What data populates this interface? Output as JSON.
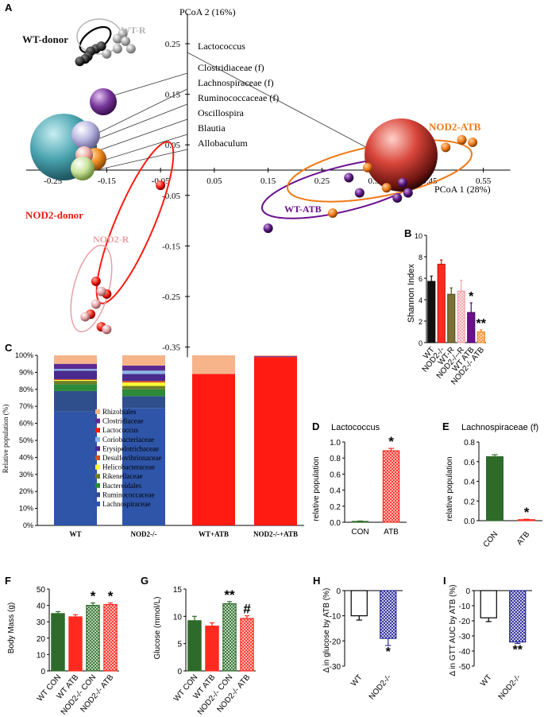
{
  "panel_letters": {
    "A": "A",
    "B": "B",
    "C": "C",
    "D": "D",
    "E": "E",
    "F": "F",
    "G": "G",
    "H": "H",
    "I": "I"
  },
  "colors": {
    "wt": "#2e6b2a",
    "nod2": "#ff2a1f",
    "wtr": "#7a7035",
    "nod2r": "#f3a0a8",
    "wtatb": "#6b0f8e",
    "nod2atb": "#f28b30",
    "stack_lachno": "#2e55a8",
    "stack_rumino": "#2f4f8c",
    "stack_bact": "#2d8a3a",
    "stack_clost": "#5c2a91",
    "stack_lacto": "#ff1a12",
    "stack_rhiz": "#f7b38a",
    "stack_rike": "#6b7f2a",
    "stack_helico": "#ffff33",
    "stack_desulf": "#d2502a",
    "stack_erysip": "#4a2a8c",
    "stack_corio": "#8ab6e6"
  },
  "chart_data": [
    {
      "id": "A",
      "type": "scatter",
      "xlabel": "PCoA 1 (28%)",
      "ylabel": "PCoA 2 (16%)",
      "x_ticks": [
        "-0.25",
        "-0.15",
        "-0.05",
        "0.05",
        "0.15",
        "0.25",
        "0.35",
        "0.45",
        "0.55"
      ],
      "y_ticks": [
        "0.25",
        "0.15",
        "0.05",
        "-0.05",
        "-0.15",
        "-0.25",
        "-0.35"
      ],
      "xlim": [
        -0.3,
        0.6
      ],
      "ylim": [
        -0.35,
        0.3
      ],
      "groups": [
        {
          "name": "WT-donor",
          "color": "#111111",
          "points": [
            [
              -0.17,
              0.24
            ],
            [
              -0.18,
              0.235
            ],
            [
              -0.185,
              0.225
            ],
            [
              -0.19,
              0.22
            ],
            [
              -0.2,
              0.215
            ],
            [
              -0.16,
              0.245
            ]
          ]
        },
        {
          "name": "WT-R",
          "color": "#9a9a9a",
          "points": [
            [
              -0.12,
              0.27
            ],
            [
              -0.13,
              0.26
            ],
            [
              -0.115,
              0.255
            ],
            [
              -0.13,
              0.24
            ],
            [
              -0.105,
              0.24
            ],
            [
              -0.15,
              0.23
            ]
          ]
        },
        {
          "name": "NOD2-donor",
          "color": "#ff1a12",
          "points": [
            [
              -0.05,
              -0.03
            ],
            [
              -0.17,
              -0.22
            ],
            [
              -0.15,
              -0.245
            ],
            [
              -0.18,
              -0.285
            ],
            [
              -0.16,
              -0.31
            ]
          ]
        },
        {
          "name": "NOD2-R",
          "color": "#e7a0a6",
          "points": [
            [
              -0.16,
              -0.24
            ],
            [
              -0.17,
              -0.265
            ],
            [
              -0.19,
              -0.29
            ],
            [
              -0.15,
              -0.315
            ]
          ]
        },
        {
          "name": "WT-ATB",
          "color": "#5b1780",
          "points": [
            [
              0.3,
              -0.015
            ],
            [
              0.4,
              -0.025
            ],
            [
              0.41,
              -0.045
            ],
            [
              0.39,
              -0.055
            ],
            [
              0.15,
              -0.115
            ],
            [
              0.32,
              -0.045
            ]
          ]
        },
        {
          "name": "NOD2-ATB",
          "color": "#f07a18",
          "points": [
            [
              0.335,
              0.005
            ],
            [
              0.51,
              0.06
            ],
            [
              0.53,
              0.055
            ],
            [
              0.48,
              0.045
            ],
            [
              0.27,
              -0.085
            ],
            [
              0.37,
              -0.035
            ]
          ]
        }
      ],
      "taxa": [
        "Lactococcus",
        "Clostridiaceae (f)",
        "Lachnospiraceae (f)",
        "Ruminococcaceae (f)",
        "Oscillospira",
        "Blautia",
        "Allobaculum"
      ]
    },
    {
      "id": "B",
      "type": "bar",
      "ylabel": "Shannon Index",
      "ylim": [
        0,
        10
      ],
      "y_ticks": [
        "0",
        "2",
        "4",
        "6",
        "8",
        "10"
      ],
      "categories": [
        "WT",
        "NOD2-/-",
        "WT-R",
        "NOD2-/--R",
        "WT ATB",
        "NOD2-/- ATB"
      ],
      "values": [
        5.7,
        7.3,
        4.5,
        4.8,
        2.8,
        1.0
      ],
      "errors": [
        0.5,
        0.4,
        0.6,
        1.0,
        0.9,
        0.2
      ],
      "annotations": [
        "",
        "",
        "",
        "",
        "*",
        "**"
      ]
    },
    {
      "id": "C",
      "type": "bar",
      "stacked": true,
      "ylabel": "Relative population (%)",
      "y_ticks": [
        "0%",
        "10%",
        "20%",
        "30%",
        "40%",
        "50%",
        "60%",
        "70%",
        "80%",
        "90%",
        "100%"
      ],
      "categories": [
        "WT",
        "NOD2-/-",
        "WT+ATB",
        "NOD2-/-+ATB"
      ],
      "legend": [
        "Rhizobiales",
        "Clostridiaceae",
        "Lactococcus",
        "Coriobacteriaceae",
        "Erysipelotrichaceae",
        "Desulfovibrionaceae",
        "Helicobacteraceae",
        "Rikenellaceae",
        "Bacteroidales",
        "Ruminococcaceae",
        "Lachnospiraceae"
      ],
      "series": [
        {
          "name": "Lachnospiraceae",
          "values": [
            67,
            69,
            0,
            0
          ]
        },
        {
          "name": "Ruminococcaceae",
          "values": [
            12,
            7,
            0,
            0
          ]
        },
        {
          "name": "Bacteroidales",
          "values": [
            4,
            4,
            0,
            0
          ]
        },
        {
          "name": "Rikenellaceae",
          "values": [
            2,
            2,
            0,
            0
          ]
        },
        {
          "name": "Helicobacteraceae",
          "values": [
            0.5,
            2,
            0,
            0
          ]
        },
        {
          "name": "Desulfovibrionaceae",
          "values": [
            0.5,
            1,
            0,
            0
          ]
        },
        {
          "name": "Erysipelotrichaceae",
          "values": [
            5,
            4,
            0,
            0
          ]
        },
        {
          "name": "Coriobacteriaceae",
          "values": [
            1,
            2,
            0,
            0
          ]
        },
        {
          "name": "Lactococcus",
          "values": [
            0,
            0,
            89,
            99
          ]
        },
        {
          "name": "Clostridiaceae",
          "values": [
            3,
            3,
            0,
            0.5
          ]
        },
        {
          "name": "Rhizobiales",
          "values": [
            5,
            6,
            11,
            0.5
          ]
        }
      ]
    },
    {
      "id": "D",
      "type": "bar",
      "title": "Lactococcus",
      "ylabel": "relative population",
      "ylim": [
        0,
        1.0
      ],
      "y_ticks": [
        "0.0",
        "0.2",
        "0.4",
        "0.6",
        "0.8",
        "1.0"
      ],
      "categories": [
        "CON",
        "ATB"
      ],
      "values": [
        0.01,
        0.89
      ],
      "errors": [
        0.005,
        0.03
      ],
      "annotations": [
        "",
        "*"
      ]
    },
    {
      "id": "E",
      "type": "bar",
      "title": "Lachnospiraceae (f)",
      "ylabel": "relative population",
      "ylim": [
        0,
        0.8
      ],
      "y_ticks": [
        "0.0",
        "0.2",
        "0.4",
        "0.6",
        "0.8"
      ],
      "categories": [
        "CON",
        "ATB"
      ],
      "values": [
        0.65,
        0.01
      ],
      "errors": [
        0.02,
        0.005
      ],
      "annotations": [
        "",
        "*"
      ]
    },
    {
      "id": "F",
      "type": "bar",
      "ylabel": "Body Mass (g)",
      "ylim": [
        0,
        50
      ],
      "y_ticks": [
        "0",
        "10",
        "20",
        "30",
        "40",
        "50"
      ],
      "categories": [
        "WT CON",
        "WT ATB",
        "NOD2-/- CON",
        "NOD2-/- ATB"
      ],
      "values": [
        35,
        33,
        40,
        40.5
      ],
      "errors": [
        1.2,
        1.3,
        1.5,
        1.0
      ],
      "annotations": [
        "",
        "",
        "*",
        "*"
      ]
    },
    {
      "id": "G",
      "type": "bar",
      "ylabel": "Glucose (mmol/L)",
      "ylim": [
        0,
        15
      ],
      "y_ticks": [
        "0",
        "5",
        "10",
        "15"
      ],
      "categories": [
        "WT CON",
        "WT ATB",
        "NOD2-/- CON",
        "NOD2-/- ATB"
      ],
      "values": [
        9.2,
        8.2,
        12.3,
        9.6
      ],
      "errors": [
        0.8,
        0.6,
        0.4,
        0.5
      ],
      "annotations": [
        "",
        "",
        "**",
        "#"
      ]
    },
    {
      "id": "H",
      "type": "bar",
      "ylabel": "Δ in glucose by ATB (%)",
      "ylim": [
        -30,
        0
      ],
      "y_ticks": [
        "0",
        "-10",
        "-20",
        "-30"
      ],
      "categories": [
        "WT",
        "NOD2-/-"
      ],
      "values": [
        -10,
        -19
      ],
      "errors": [
        1.7,
        2.8
      ],
      "annotations": [
        "",
        "*"
      ]
    },
    {
      "id": "I",
      "type": "bar",
      "ylabel": "Δ in GTT AUC by ATB (%)",
      "ylim": [
        -50,
        0
      ],
      "y_ticks": [
        "0",
        "-10",
        "-20",
        "-30",
        "-40",
        "-50"
      ],
      "categories": [
        "WT",
        "NOD2-/-"
      ],
      "values": [
        -18,
        -34
      ],
      "errors": [
        2.5,
        1.0
      ],
      "annotations": [
        "",
        "**"
      ]
    }
  ]
}
